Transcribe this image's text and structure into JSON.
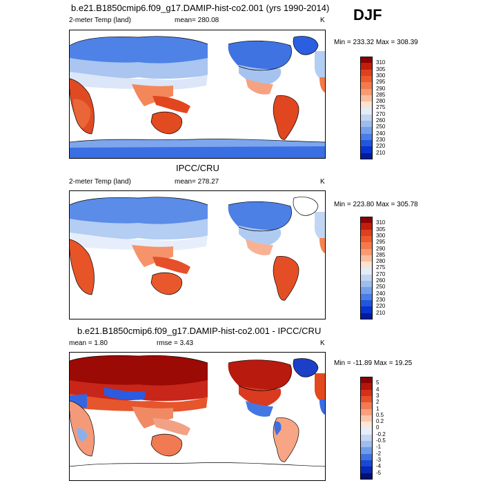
{
  "season": "DJF",
  "panels": [
    {
      "id": "model",
      "title": "b.e21.B1850cmip6.f09_g17.DAMIP-hist-co2.001 (yrs 1990-2014)",
      "left_label": "2-meter Temp (land)",
      "center_label": "mean= 280.08",
      "right_label": "K",
      "minmax": "Min = 233.32 Max = 308.39",
      "colorbar": {
        "labels": [
          "310",
          "305",
          "300",
          "295",
          "290",
          "285",
          "280",
          "275",
          "270",
          "260",
          "250",
          "240",
          "230",
          "220",
          "210"
        ],
        "colors": [
          "#8b0000",
          "#c41d0c",
          "#e0401b",
          "#ed5a2e",
          "#f47a4c",
          "#f89b73",
          "#fbbd9d",
          "#fde2d0",
          "#e4ecf8",
          "#c2d4f2",
          "#9dbdee",
          "#749fea",
          "#4a7de6",
          "#2156e0",
          "#0934d0",
          "#001c9e"
        ]
      }
    },
    {
      "id": "obs",
      "title": "IPCC/CRU",
      "left_label": "2-meter Temp (land)",
      "center_label": "mean= 278.27",
      "right_label": "K",
      "minmax": "Min = 223.80 Max = 305.78",
      "colorbar": {
        "labels": [
          "310",
          "305",
          "300",
          "295",
          "290",
          "285",
          "280",
          "275",
          "270",
          "260",
          "250",
          "240",
          "230",
          "220",
          "210"
        ],
        "colors": [
          "#8b0000",
          "#c41d0c",
          "#e0401b",
          "#ed5a2e",
          "#f47a4c",
          "#f89b73",
          "#fbbd9d",
          "#fde2d0",
          "#e4ecf8",
          "#c2d4f2",
          "#9dbdee",
          "#749fea",
          "#4a7de6",
          "#2156e0",
          "#0934d0",
          "#001c9e"
        ]
      }
    },
    {
      "id": "diff",
      "title": "b.e21.B1850cmip6.f09_g17.DAMIP-hist-co2.001 - IPCC/CRU",
      "left_label": "mean =  1.80",
      "center_label": "rmse =  3.43",
      "right_label": "K",
      "minmax": "Min = -11.89 Max =  19.25",
      "colorbar": {
        "labels": [
          "5",
          "4",
          "3",
          "2",
          "1",
          "0.5",
          "0.2",
          "0",
          "-0.2",
          "-0.5",
          "-1",
          "-2",
          "-3",
          "-4",
          "-5"
        ],
        "colors": [
          "#8b0000",
          "#b5150a",
          "#d6301a",
          "#ea4f2c",
          "#f47a52",
          "#f9a07e",
          "#fcc6ab",
          "#fee6d9",
          "#e6eefa",
          "#c4d6f3",
          "#9cbdee",
          "#6f9ce9",
          "#3e74e2",
          "#1948d8",
          "#0828b8",
          "#001270"
        ]
      }
    }
  ]
}
